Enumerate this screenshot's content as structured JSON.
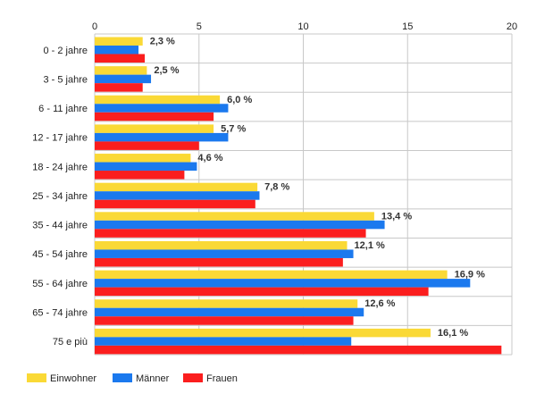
{
  "chart_data": {
    "type": "bar",
    "orientation": "horizontal",
    "categories": [
      "0 - 2 jahre",
      "3 - 5 jahre",
      "6 - 11 jahre",
      "12 - 17 jahre",
      "18 - 24 jahre",
      "25 - 34 jahre",
      "35 - 44 jahre",
      "45 - 54 jahre",
      "55 - 64 jahre",
      "65 - 74 jahre",
      "75 e più"
    ],
    "series": [
      {
        "name": "Einwohner",
        "color": "#fad936",
        "values": [
          2.3,
          2.5,
          6.0,
          5.7,
          4.6,
          7.8,
          13.4,
          12.1,
          16.9,
          12.6,
          16.1
        ]
      },
      {
        "name": "Männer",
        "color": "#1b79ee",
        "values": [
          2.1,
          2.7,
          6.4,
          6.4,
          4.9,
          7.9,
          13.9,
          12.4,
          18.0,
          12.9,
          12.3
        ]
      },
      {
        "name": "Frauen",
        "color": "#fb1e1e",
        "values": [
          2.4,
          2.3,
          5.7,
          5.0,
          4.3,
          7.7,
          13.0,
          11.9,
          16.0,
          12.4,
          19.5
        ]
      }
    ],
    "data_labels": [
      "2,3 %",
      "2,5 %",
      "6,0 %",
      "5,7 %",
      "4,6 %",
      "7,8 %",
      "13,4 %",
      "12,1 %",
      "16,9 %",
      "12,6 %",
      "16,1 %"
    ],
    "xlim": [
      0,
      20
    ],
    "x_ticks": [
      0,
      5,
      10,
      15,
      20
    ],
    "x_tick_labels": [
      "0",
      "5",
      "10",
      "15",
      "20"
    ],
    "title": "",
    "xlabel": "",
    "ylabel": "",
    "grid": true,
    "legend_position": "bottom-left"
  }
}
